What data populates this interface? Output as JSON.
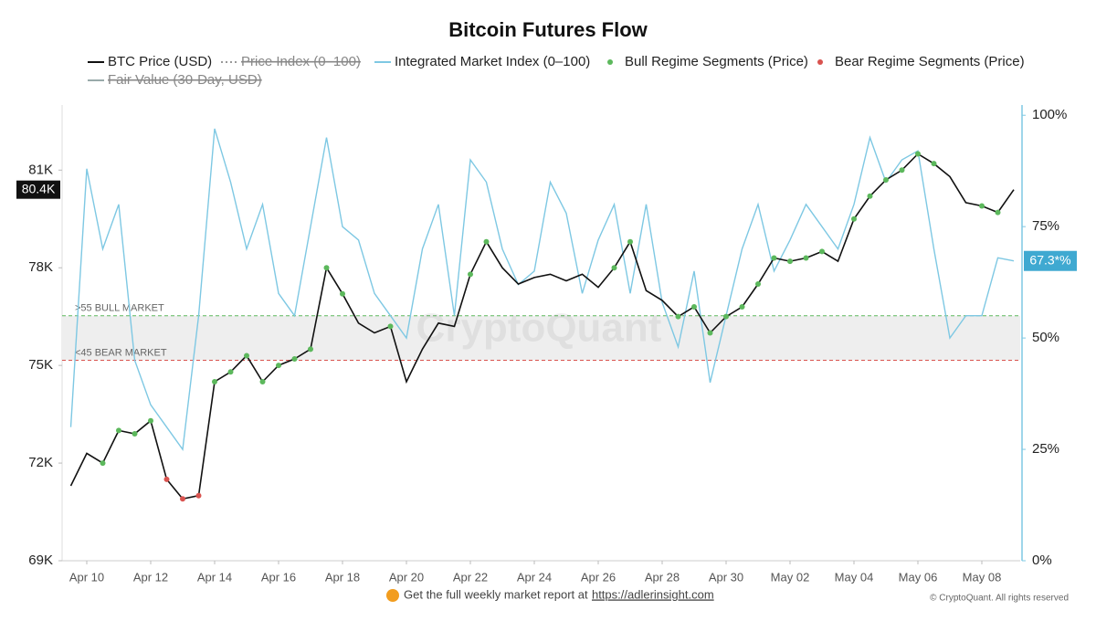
{
  "chart_data": {
    "type": "line",
    "title": "Bitcoin Futures Flow",
    "categories": [
      null,
      "Apr 10",
      null,
      null,
      null,
      "Apr 12",
      null,
      null,
      null,
      "Apr 14",
      null,
      null,
      null,
      "Apr 16",
      null,
      null,
      null,
      "Apr 18",
      null,
      null,
      null,
      "Apr 20",
      null,
      null,
      null,
      "Apr 22",
      null,
      null,
      null,
      "Apr 24",
      null,
      null,
      null,
      "Apr 26",
      null,
      null,
      null,
      "Apr 28",
      null,
      null,
      null,
      "Apr 30",
      null,
      null,
      null,
      "May 02",
      null,
      null,
      null,
      "May 04",
      null,
      null,
      null,
      "May 06",
      null,
      null,
      null,
      "May 08",
      null,
      null
    ],
    "series": [
      {
        "name": "BTC Price (USD)",
        "color": "#111111",
        "values": [
          71300,
          72300,
          72000,
          73000,
          72900,
          73300,
          71500,
          70900,
          71000,
          74500,
          74800,
          75300,
          74500,
          75000,
          75200,
          75500,
          78000,
          77200,
          76300,
          76000,
          76200,
          74500,
          75500,
          76300,
          76200,
          77800,
          78800,
          78000,
          77500,
          77700,
          77800,
          77600,
          77800,
          77400,
          78000,
          78800,
          77300,
          77000,
          76500,
          76800,
          76000,
          76500,
          76800,
          77500,
          78300,
          78200,
          78300,
          78500,
          78200,
          79500,
          80200,
          80700,
          81000,
          81500,
          81200,
          80800,
          80000,
          79900,
          79700,
          80400
        ]
      },
      {
        "name": "Integrated Market Index (0–100)",
        "color": "#7ec8e3",
        "axis": "y2",
        "values": [
          30,
          88,
          70,
          80,
          45,
          35,
          30,
          25,
          55,
          97,
          85,
          70,
          80,
          60,
          55,
          75,
          95,
          75,
          72,
          60,
          55,
          50,
          70,
          80,
          55,
          90,
          85,
          70,
          62,
          65,
          85,
          78,
          60,
          72,
          80,
          60,
          80,
          58,
          48,
          65,
          40,
          55,
          70,
          80,
          65,
          72,
          80,
          75,
          70,
          80,
          95,
          85,
          90,
          92,
          70,
          50,
          55,
          55,
          68,
          67.3
        ]
      },
      {
        "name": "Bull Regime Segments (Price)",
        "color": "#5cb85c",
        "values": [
          null,
          null,
          72000,
          73000,
          72900,
          73300,
          null,
          null,
          null,
          74500,
          74800,
          75300,
          74500,
          75000,
          75200,
          75500,
          78000,
          77200,
          null,
          null,
          76200,
          null,
          null,
          null,
          null,
          77800,
          78800,
          null,
          null,
          null,
          null,
          null,
          null,
          null,
          78000,
          78800,
          null,
          null,
          76500,
          76800,
          76000,
          76500,
          76800,
          77500,
          78300,
          78200,
          78300,
          78500,
          null,
          79500,
          80200,
          80700,
          81000,
          81500,
          81200,
          null,
          null,
          79900,
          79700,
          null
        ]
      },
      {
        "name": "Bear Regime Segments (Price)",
        "color": "#d9534f",
        "values": [
          null,
          null,
          null,
          null,
          null,
          null,
          71500,
          70900,
          71000,
          null,
          null,
          null,
          null,
          null,
          null,
          null,
          null,
          null,
          null,
          null,
          null,
          null,
          null,
          null,
          null,
          null,
          null,
          null,
          null,
          null,
          null,
          null,
          null,
          null,
          null,
          null,
          null,
          null,
          null,
          null,
          null,
          null,
          null,
          null,
          null,
          null,
          null,
          null,
          null,
          null,
          null,
          null,
          null,
          null,
          null,
          null,
          null,
          null,
          null,
          null
        ]
      }
    ],
    "hidden_series": [
      "Price Index (0–100)",
      "Fair Value (30-Day, USD)"
    ],
    "ylim": [
      69000,
      83000
    ],
    "yticks": [
      {
        "value": 69000,
        "label": "69K"
      },
      {
        "value": 72000,
        "label": "72K"
      },
      {
        "value": 75000,
        "label": "75K"
      },
      {
        "value": 78000,
        "label": "78K"
      },
      {
        "value": 81000,
        "label": "81K"
      }
    ],
    "y2lim": [
      0,
      102.3
    ],
    "y2ticks": [
      {
        "value": 0,
        "label": "0%"
      },
      {
        "value": 25,
        "label": "25%"
      },
      {
        "value": 50,
        "label": "50%"
      },
      {
        "value": 75,
        "label": "75%"
      },
      {
        "value": 100,
        "label": "100%"
      }
    ],
    "bands": [
      {
        "value": 55,
        "label": ">55 BULL MARKET",
        "color": "#5cb85c"
      },
      {
        "value": 45,
        "label": "<45 BEAR MARKET",
        "color": "#d9534f"
      }
    ],
    "last_price": {
      "value": 80400,
      "label": "80.4K"
    },
    "last_index": {
      "value": 67.3,
      "label": "67.3*%"
    },
    "watermark": "CryptoQuant",
    "footer": {
      "text": "Get the full weekly market report at",
      "link": "https://adlerinsight.com",
      "copyright": "© CryptoQuant. All rights reserved"
    }
  }
}
